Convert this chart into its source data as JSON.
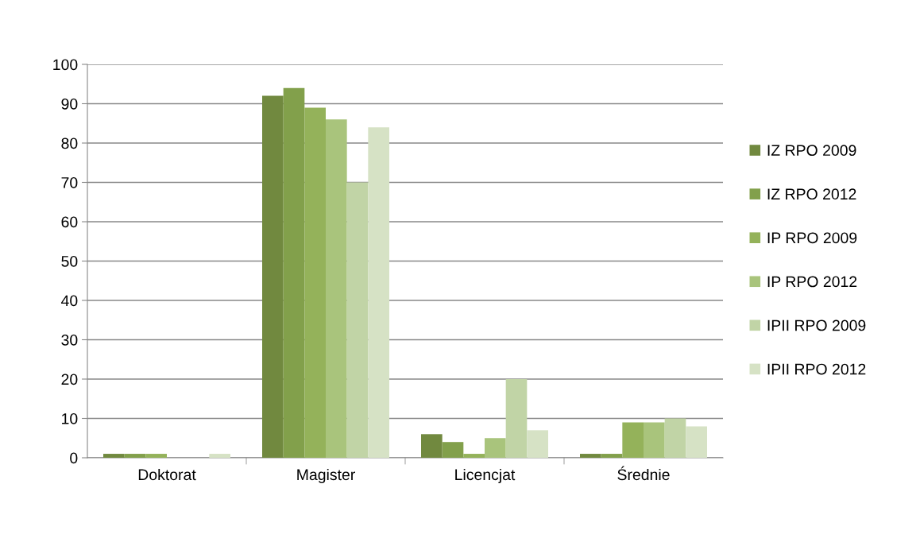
{
  "chart_data": {
    "type": "bar",
    "categories": [
      "Doktorat",
      "Magister",
      "Licencjat",
      "Średnie"
    ],
    "series": [
      {
        "name": "IZ RPO 2009",
        "color": "#71893f",
        "values": [
          1,
          92,
          6,
          1
        ]
      },
      {
        "name": "IZ RPO 2012",
        "color": "#82a04b",
        "values": [
          1,
          94,
          4,
          1
        ]
      },
      {
        "name": "IP RPO 2009",
        "color": "#94b25a",
        "values": [
          1,
          89,
          1,
          9
        ]
      },
      {
        "name": "IP RPO 2012",
        "color": "#a9c47c",
        "values": [
          0,
          86,
          5,
          9
        ]
      },
      {
        "name": "IPII RPO 2009",
        "color": "#c1d4a6",
        "values": [
          0,
          70,
          20,
          10
        ]
      },
      {
        "name": "IPII RPO 2012",
        "color": "#d6e2c5",
        "values": [
          1,
          84,
          7,
          8
        ]
      }
    ],
    "ylim": [
      0,
      100
    ],
    "yticks": [
      0,
      10,
      20,
      30,
      40,
      50,
      60,
      70,
      80,
      90,
      100
    ],
    "grid": "y",
    "legend": "right"
  }
}
